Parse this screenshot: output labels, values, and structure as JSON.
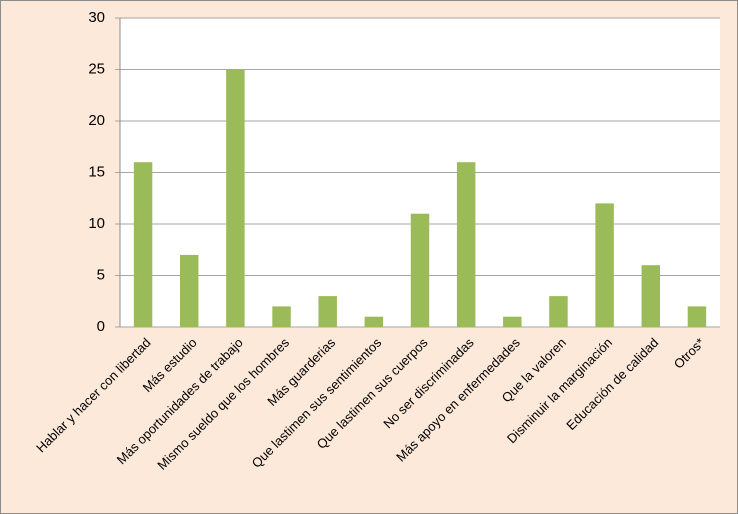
{
  "chart_data": {
    "type": "bar",
    "categories": [
      "Hablar y hacer con libertad",
      "Más estudio",
      "Más oportunidades de trabajo",
      "Mismo sueldo que los hombres",
      "Más guarderias",
      "Que lastimen sus sentimientos",
      "Que lastimen sus cuerpos",
      "No ser discriminadas",
      "Más apoyo en enfermedades",
      "Que la valoren",
      "Disminuir la marginación",
      "Educación de calidad",
      "Otros*"
    ],
    "values": [
      16,
      7,
      25,
      2,
      3,
      1,
      11,
      16,
      1,
      3,
      12,
      6,
      2
    ],
    "color": "#9bbb59",
    "ylim": [
      0,
      30
    ],
    "yticks": [
      0,
      5,
      10,
      15,
      20,
      25,
      30
    ],
    "grid": true
  }
}
